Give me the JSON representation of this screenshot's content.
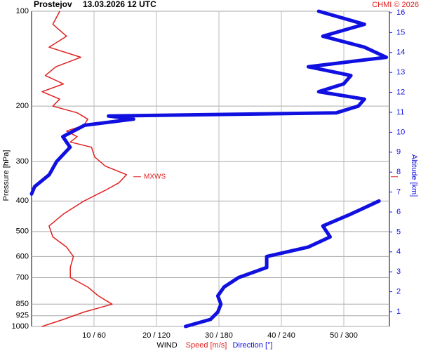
{
  "chart_data": {
    "type": "line",
    "title": "Prostejov",
    "subtitle": "13.03.2026 12 UTC",
    "credit": "CHMI © 2026",
    "ylabel": "Pressure [hPa]",
    "y2label": "Altitude [km]",
    "xlabel": "WIND",
    "xlabel_speed": "Speed [m/s]",
    "xlabel_direction": "Direction [°]",
    "log_y": true,
    "grid": true,
    "ylim": [
      1000,
      100
    ],
    "yticks": [
      100,
      200,
      300,
      400,
      500,
      600,
      700,
      850,
      925,
      1000
    ],
    "y2lim": [
      0.26,
      16.07
    ],
    "y2ticks": [
      1,
      2,
      3,
      4,
      5,
      6,
      7,
      8,
      9,
      10,
      11,
      12,
      13,
      14,
      15,
      16
    ],
    "xlim": [
      0,
      57.3
    ],
    "x2lim": [
      0,
      344
    ],
    "xticks": [
      {
        "value": 10,
        "label": "10 / 60"
      },
      {
        "value": 20,
        "label": "20 / 120"
      },
      {
        "value": 30,
        "label": "30 / 180"
      },
      {
        "value": 40,
        "label": "40 / 240"
      },
      {
        "value": 50,
        "label": "50 / 300"
      }
    ],
    "annotation": {
      "text": "MXWS",
      "pressure": 335,
      "color": "#e02020"
    },
    "series": [
      {
        "name": "Speed",
        "color": "#e02020",
        "axis": "x",
        "pressure": [
          100,
          110,
          120,
          130,
          140,
          150,
          160,
          170,
          180,
          190,
          200,
          210,
          220,
          230,
          240,
          250,
          260,
          270,
          290,
          310,
          330,
          350,
          370,
          400,
          440,
          480,
          520,
          560,
          600,
          650,
          700,
          750,
          800,
          850,
          900,
          950,
          1000
        ],
        "values": [
          4.5,
          3.4,
          5.6,
          2.8,
          7.9,
          3.9,
          2.2,
          5.1,
          1.7,
          4.5,
          3.4,
          7.3,
          9.0,
          8.4,
          5.6,
          7.3,
          6.2,
          9.6,
          10.1,
          11.8,
          15.2,
          14.0,
          11.8,
          8.4,
          5.1,
          2.8,
          3.4,
          5.6,
          6.7,
          6.2,
          6.2,
          9.0,
          10.7,
          12.9,
          8.4,
          5.1,
          1.7
        ]
      },
      {
        "name": "Direction",
        "color": "#1010e0",
        "axis": "x2",
        "pressure": [
          100,
          110,
          120,
          130,
          140,
          150,
          160,
          170,
          180,
          190,
          200,
          210,
          215,
          220,
          230,
          250,
          270,
          300,
          330,
          360,
          380,
          null,
          400,
          440,
          480,
          520,
          560,
          600,
          650,
          700,
          750,
          800,
          850,
          900,
          950,
          1000
        ],
        "values": [
          276,
          320,
          280,
          320,
          341,
          266,
          307,
          300,
          276,
          320,
          314,
          293,
          74,
          98,
          51,
          30,
          37,
          24,
          17,
          3,
          0,
          null,
          334,
          307,
          280,
          287,
          266,
          226,
          226,
          199,
          185,
          179,
          182,
          179,
          172,
          148
        ]
      }
    ]
  }
}
